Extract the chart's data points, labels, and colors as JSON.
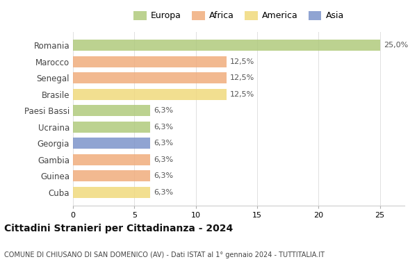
{
  "countries": [
    "Romania",
    "Marocco",
    "Senegal",
    "Brasile",
    "Paesi Bassi",
    "Ucraina",
    "Georgia",
    "Gambia",
    "Guinea",
    "Cuba"
  ],
  "values": [
    25.0,
    12.5,
    12.5,
    12.5,
    6.3,
    6.3,
    6.3,
    6.3,
    6.3,
    6.3
  ],
  "labels": [
    "25,0%",
    "12,5%",
    "12,5%",
    "12,5%",
    "6,3%",
    "6,3%",
    "6,3%",
    "6,3%",
    "6,3%",
    "6,3%"
  ],
  "continents": [
    "Europa",
    "Africa",
    "Africa",
    "America",
    "Europa",
    "Europa",
    "Asia",
    "Africa",
    "Africa",
    "America"
  ],
  "colors": {
    "Europa": "#adc878",
    "Africa": "#f0aa78",
    "America": "#f0d878",
    "Asia": "#7890c8"
  },
  "legend_order": [
    "Europa",
    "Africa",
    "America",
    "Asia"
  ],
  "title": "Cittadini Stranieri per Cittadinanza - 2024",
  "subtitle": "COMUNE DI CHIUSANO DI SAN DOMENICO (AV) - Dati ISTAT al 1° gennaio 2024 - TUTTITALIA.IT",
  "xlim": [
    0,
    27
  ],
  "xticks": [
    0,
    5,
    10,
    15,
    20,
    25
  ],
  "background_color": "#ffffff",
  "bar_alpha": 0.82
}
